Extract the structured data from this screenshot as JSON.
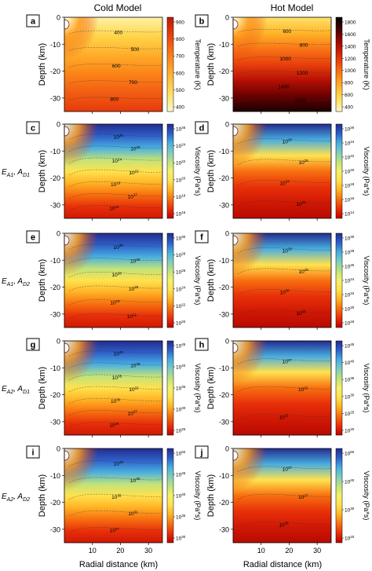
{
  "header": {
    "cold_title": "Cold Model",
    "hot_title": "Hot Model"
  },
  "row_labels": [
    {
      "base1": "E",
      "sub1": "A1",
      "base2": "A",
      "sub2": "D1"
    },
    {
      "base1": "E",
      "sub1": "A1",
      "base2": "A",
      "sub2": "D2"
    },
    {
      "base1": "E",
      "sub1": "A2",
      "base2": "A",
      "sub2": "D1"
    },
    {
      "base1": "E",
      "sub1": "A2",
      "base2": "A",
      "sub2": "D2"
    }
  ],
  "axes": {
    "ylabel": "Depth (km)",
    "xlabel": "Radial distance (km)",
    "yticks": [
      0,
      -10,
      -20,
      -30
    ],
    "xticks": [
      10,
      20,
      30
    ],
    "xlim": [
      0,
      35
    ],
    "ylim": [
      -35,
      0
    ]
  },
  "colors": {
    "temp_scale": [
      "#fff7d0",
      "#ffe36a",
      "#ffc23a",
      "#ff9a1f",
      "#f96a12",
      "#e63a0c",
      "#c01606",
      "#8a0402",
      "#3a0000",
      "#000000"
    ],
    "visc_scale": [
      "#c00000",
      "#e8300a",
      "#f7700f",
      "#ffb325",
      "#ffe24e",
      "#f4f16a",
      "#bfe37c",
      "#7fcdc0",
      "#48aee0",
      "#2e5fc8",
      "#232c8e"
    ]
  },
  "chart_data": [
    {
      "panel": "a",
      "type": "heatmap",
      "quantity": "temperature",
      "model": "cold",
      "colorbar_label": "Temperature (K)",
      "colorbar_ticks": [
        "900",
        "800",
        "700",
        "600",
        "500",
        "400"
      ],
      "contours": [
        {
          "label": "400"
        },
        {
          "label": "500"
        },
        {
          "label": "600"
        },
        {
          "label": "700"
        },
        {
          "label": "800"
        }
      ]
    },
    {
      "panel": "b",
      "type": "heatmap",
      "quantity": "temperature",
      "model": "hot",
      "colorbar_label": "Temperature (K)",
      "colorbar_ticks": [
        "1800",
        "1600",
        "1400",
        "1200",
        "1000",
        "800",
        "600",
        "400"
      ],
      "contours": [
        {
          "label": "600"
        },
        {
          "label": "800"
        },
        {
          "label": "1000"
        },
        {
          "label": "1200"
        },
        {
          "label": "1400"
        },
        {
          "label": "1600"
        }
      ]
    },
    {
      "panel": "c",
      "type": "heatmap",
      "quantity": "viscosity",
      "model": "cold",
      "colorbar_label": "Viscosity (Pa*s)",
      "colorbar_ticks": [
        "10^26",
        "10^24",
        "10^22",
        "10^20",
        "10^18",
        "10^16"
      ],
      "contours": [
        {
          "label": "10^26"
        },
        {
          "label": "10^25"
        },
        {
          "label": "10^24"
        },
        {
          "label": "10^22"
        },
        {
          "label": "10^19"
        },
        {
          "label": "10^17"
        },
        {
          "label": "10^16"
        }
      ]
    },
    {
      "panel": "d",
      "type": "heatmap",
      "quantity": "viscosity",
      "model": "hot",
      "colorbar_label": "Viscosity (Pa*s)",
      "colorbar_ticks": [
        "10^26",
        "10^24",
        "10^22",
        "10^20",
        "10^18",
        "10^16",
        "10^14"
      ],
      "contours": [
        {
          "label": "10^26"
        },
        {
          "label": "10^25"
        },
        {
          "label": "10^24"
        },
        {
          "label": "10^22"
        }
      ]
    },
    {
      "panel": "e",
      "type": "heatmap",
      "quantity": "viscosity",
      "model": "cold",
      "colorbar_label": "Viscosity (Pa*s)",
      "colorbar_ticks": [
        "10^30",
        "10^28",
        "10^26",
        "10^24",
        "10^22",
        "10^20"
      ],
      "contours": [
        {
          "label": "10^30"
        },
        {
          "label": "10^29"
        },
        {
          "label": "10^28"
        },
        {
          "label": "10^25"
        },
        {
          "label": "10^23"
        },
        {
          "label": "10^21"
        }
      ]
    },
    {
      "panel": "f",
      "type": "heatmap",
      "quantity": "viscosity",
      "model": "hot",
      "colorbar_label": "Viscosity (Pa*s)",
      "colorbar_ticks": [
        "10^30",
        "10^28",
        "10^26",
        "10^24",
        "10^22",
        "10^20",
        "10^18"
      ],
      "contours": [
        {
          "label": "10^29"
        },
        {
          "label": "10^28"
        },
        {
          "label": "10^26"
        },
        {
          "label": "10^22"
        }
      ]
    },
    {
      "panel": "g",
      "type": "heatmap",
      "quantity": "viscosity",
      "model": "cold",
      "colorbar_label": "Viscosity (Pa*s)",
      "colorbar_ticks": [
        "10^45",
        "10^40",
        "10^35",
        "10^30",
        "10^25"
      ],
      "contours": [
        {
          "label": "10^44"
        },
        {
          "label": "10^39"
        },
        {
          "label": "10^35"
        },
        {
          "label": "10^32"
        },
        {
          "label": "10^30"
        },
        {
          "label": "10^27"
        },
        {
          "label": "10^25"
        }
      ]
    },
    {
      "panel": "h",
      "type": "heatmap",
      "quantity": "viscosity",
      "model": "hot",
      "colorbar_label": "Viscosity (Pa*s)",
      "colorbar_ticks": [
        "10^45",
        "10^40",
        "10^35",
        "10^30",
        "10^25",
        "10^20"
      ],
      "contours": [
        {
          "label": "10^27"
        },
        {
          "label": "10^22"
        },
        {
          "label": "10^21"
        }
      ]
    },
    {
      "panel": "i",
      "type": "heatmap",
      "quantity": "viscosity",
      "model": "cold",
      "colorbar_label": "Viscosity (Pa*s)",
      "colorbar_ticks": [
        "10^50",
        "10^45",
        "10^40",
        "10^35",
        "10^30"
      ],
      "contours": [
        {
          "label": "10^43"
        },
        {
          "label": "10^39"
        },
        {
          "label": "10^35"
        },
        {
          "label": "10^31"
        },
        {
          "label": "10^27"
        }
      ]
    },
    {
      "panel": "j",
      "type": "heatmap",
      "quantity": "viscosity",
      "model": "hot",
      "colorbar_label": "Viscosity (Pa*s)",
      "colorbar_ticks": [
        "10^50",
        "10^40",
        "10^30",
        "10^20"
      ],
      "contours": [
        {
          "label": "10^37"
        },
        {
          "label": "10^27"
        },
        {
          "label": "10^25"
        }
      ]
    }
  ]
}
